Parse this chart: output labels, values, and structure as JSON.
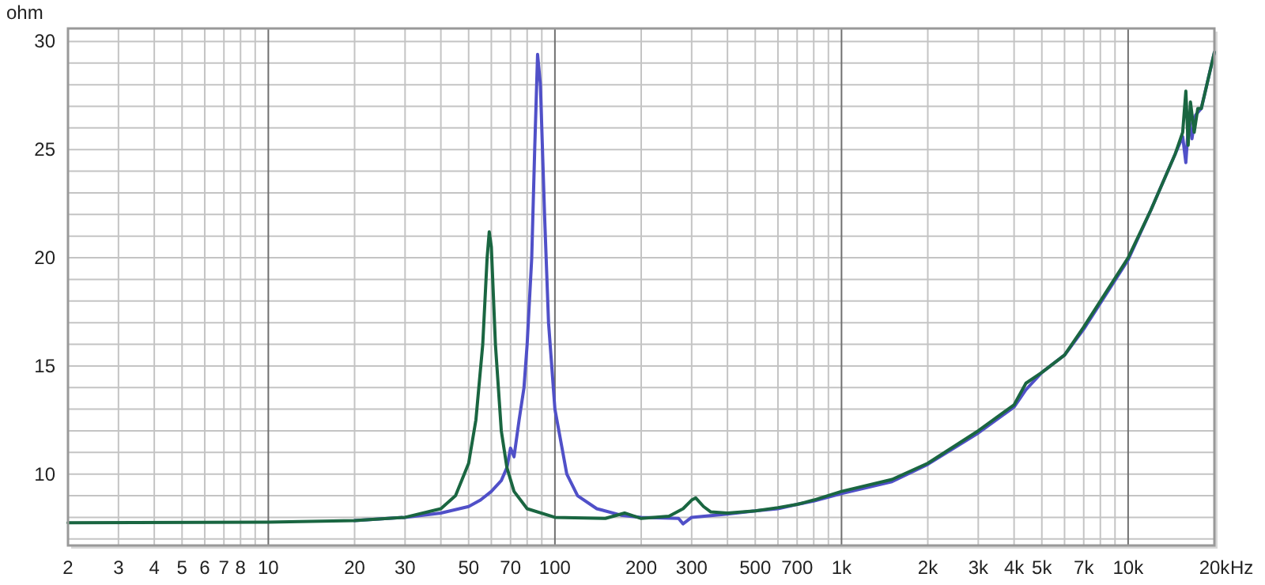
{
  "chart_data": {
    "type": "line",
    "ylabel": "ohm",
    "log": "x",
    "grid": true,
    "marker": "none",
    "line_style": "solid",
    "xlim": [
      2,
      20000
    ],
    "ylim": [
      6.7,
      30.6
    ],
    "xticks": [
      2,
      3,
      4,
      5,
      6,
      7,
      8,
      {
        "value": 9,
        "label": null
      },
      10,
      20,
      30,
      {
        "value": 40,
        "label": null
      },
      50,
      {
        "value": 60,
        "label": null
      },
      70,
      {
        "value": 80,
        "label": null
      },
      {
        "value": 90,
        "label": null
      },
      100,
      200,
      300,
      {
        "value": 400,
        "label": null
      },
      500,
      {
        "value": 600,
        "label": null
      },
      700,
      {
        "value": 800,
        "label": null
      },
      {
        "value": 900,
        "label": null
      },
      {
        "value": 1000,
        "label": "1k"
      },
      {
        "value": 2000,
        "label": "2k"
      },
      {
        "value": 3000,
        "label": "3k"
      },
      {
        "value": 4000,
        "label": "4k"
      },
      {
        "value": 5000,
        "label": "5k"
      },
      {
        "value": 6000,
        "label": null
      },
      {
        "value": 7000,
        "label": "7k"
      },
      {
        "value": 8000,
        "label": null
      },
      {
        "value": 9000,
        "label": null
      },
      {
        "value": 10000,
        "label": "10k"
      },
      {
        "value": 20000,
        "label": "20k"
      }
    ],
    "xlabel": "Hz",
    "yticks": [
      {
        "value": 7,
        "label": null
      },
      {
        "value": 8,
        "label": null
      },
      {
        "value": 9,
        "label": null
      },
      10,
      {
        "value": 11,
        "label": null
      },
      {
        "value": 12,
        "label": null
      },
      {
        "value": 13,
        "label": null
      },
      {
        "value": 14,
        "label": null
      },
      15,
      {
        "value": 16,
        "label": null
      },
      {
        "value": 17,
        "label": null
      },
      {
        "value": 18,
        "label": null
      },
      {
        "value": 19,
        "label": null
      },
      20,
      {
        "value": 21,
        "label": null
      },
      {
        "value": 22,
        "label": null
      },
      {
        "value": 23,
        "label": null
      },
      {
        "value": 24,
        "label": null
      },
      25,
      {
        "value": 26,
        "label": null
      },
      {
        "value": 27,
        "label": null
      },
      {
        "value": 28,
        "label": null
      },
      {
        "value": 29,
        "label": null
      },
      30
    ],
    "series": [
      {
        "color": "#5050c8",
        "x": [
          20,
          30,
          40,
          50,
          55,
          60,
          65,
          68,
          70,
          72,
          75,
          78,
          80,
          83,
          85,
          87,
          89,
          92,
          95,
          100,
          110,
          120,
          140,
          170,
          200,
          270,
          280,
          300,
          400,
          500,
          600,
          700,
          800,
          1000,
          1500,
          2000,
          3000,
          4000,
          4400,
          5000,
          6000,
          7000,
          10000,
          12000,
          14600,
          15500,
          15900,
          16300,
          16700,
          17200,
          18000,
          20000
        ],
        "values": [
          7.85,
          8.0,
          8.2,
          8.5,
          8.8,
          9.2,
          9.7,
          10.3,
          11.2,
          10.8,
          12.5,
          14,
          16,
          20,
          25,
          29.4,
          28,
          22,
          17,
          13,
          10,
          9,
          8.4,
          8.1,
          8.0,
          7.95,
          7.7,
          8.0,
          8.15,
          8.3,
          8.4,
          8.6,
          8.75,
          9.1,
          9.65,
          10.45,
          11.9,
          13.1,
          13.9,
          14.7,
          15.5,
          16.7,
          19.9,
          22.2,
          24.8,
          25.6,
          24.4,
          26.5,
          25.5,
          26.6,
          26.9,
          29.5
        ]
      },
      {
        "color": "#1a6641",
        "x": [
          2,
          10,
          20,
          30,
          40,
          45,
          50,
          53,
          56,
          58,
          59,
          60,
          62,
          65,
          68,
          72,
          80,
          100,
          150,
          175,
          200,
          250,
          280,
          300,
          310,
          330,
          350,
          400,
          500,
          600,
          700,
          800,
          1000,
          1500,
          2000,
          3000,
          4000,
          4400,
          5000,
          6000,
          7000,
          10000,
          12000,
          14600,
          15500,
          15900,
          16200,
          16500,
          17000,
          17500,
          18000,
          20000
        ],
        "values": [
          7.75,
          7.78,
          7.85,
          8.0,
          8.4,
          9.0,
          10.5,
          12.5,
          16,
          20,
          21.2,
          20.5,
          16,
          12,
          10.3,
          9.2,
          8.4,
          8.0,
          7.95,
          8.2,
          7.95,
          8.05,
          8.4,
          8.8,
          8.9,
          8.5,
          8.25,
          8.2,
          8.3,
          8.45,
          8.6,
          8.8,
          9.2,
          9.75,
          10.5,
          12.0,
          13.2,
          14.2,
          14.7,
          15.5,
          16.8,
          20.0,
          22.2,
          24.8,
          25.8,
          27.7,
          25.2,
          27.2,
          25.8,
          26.9,
          26.9,
          29.5
        ]
      }
    ]
  }
}
